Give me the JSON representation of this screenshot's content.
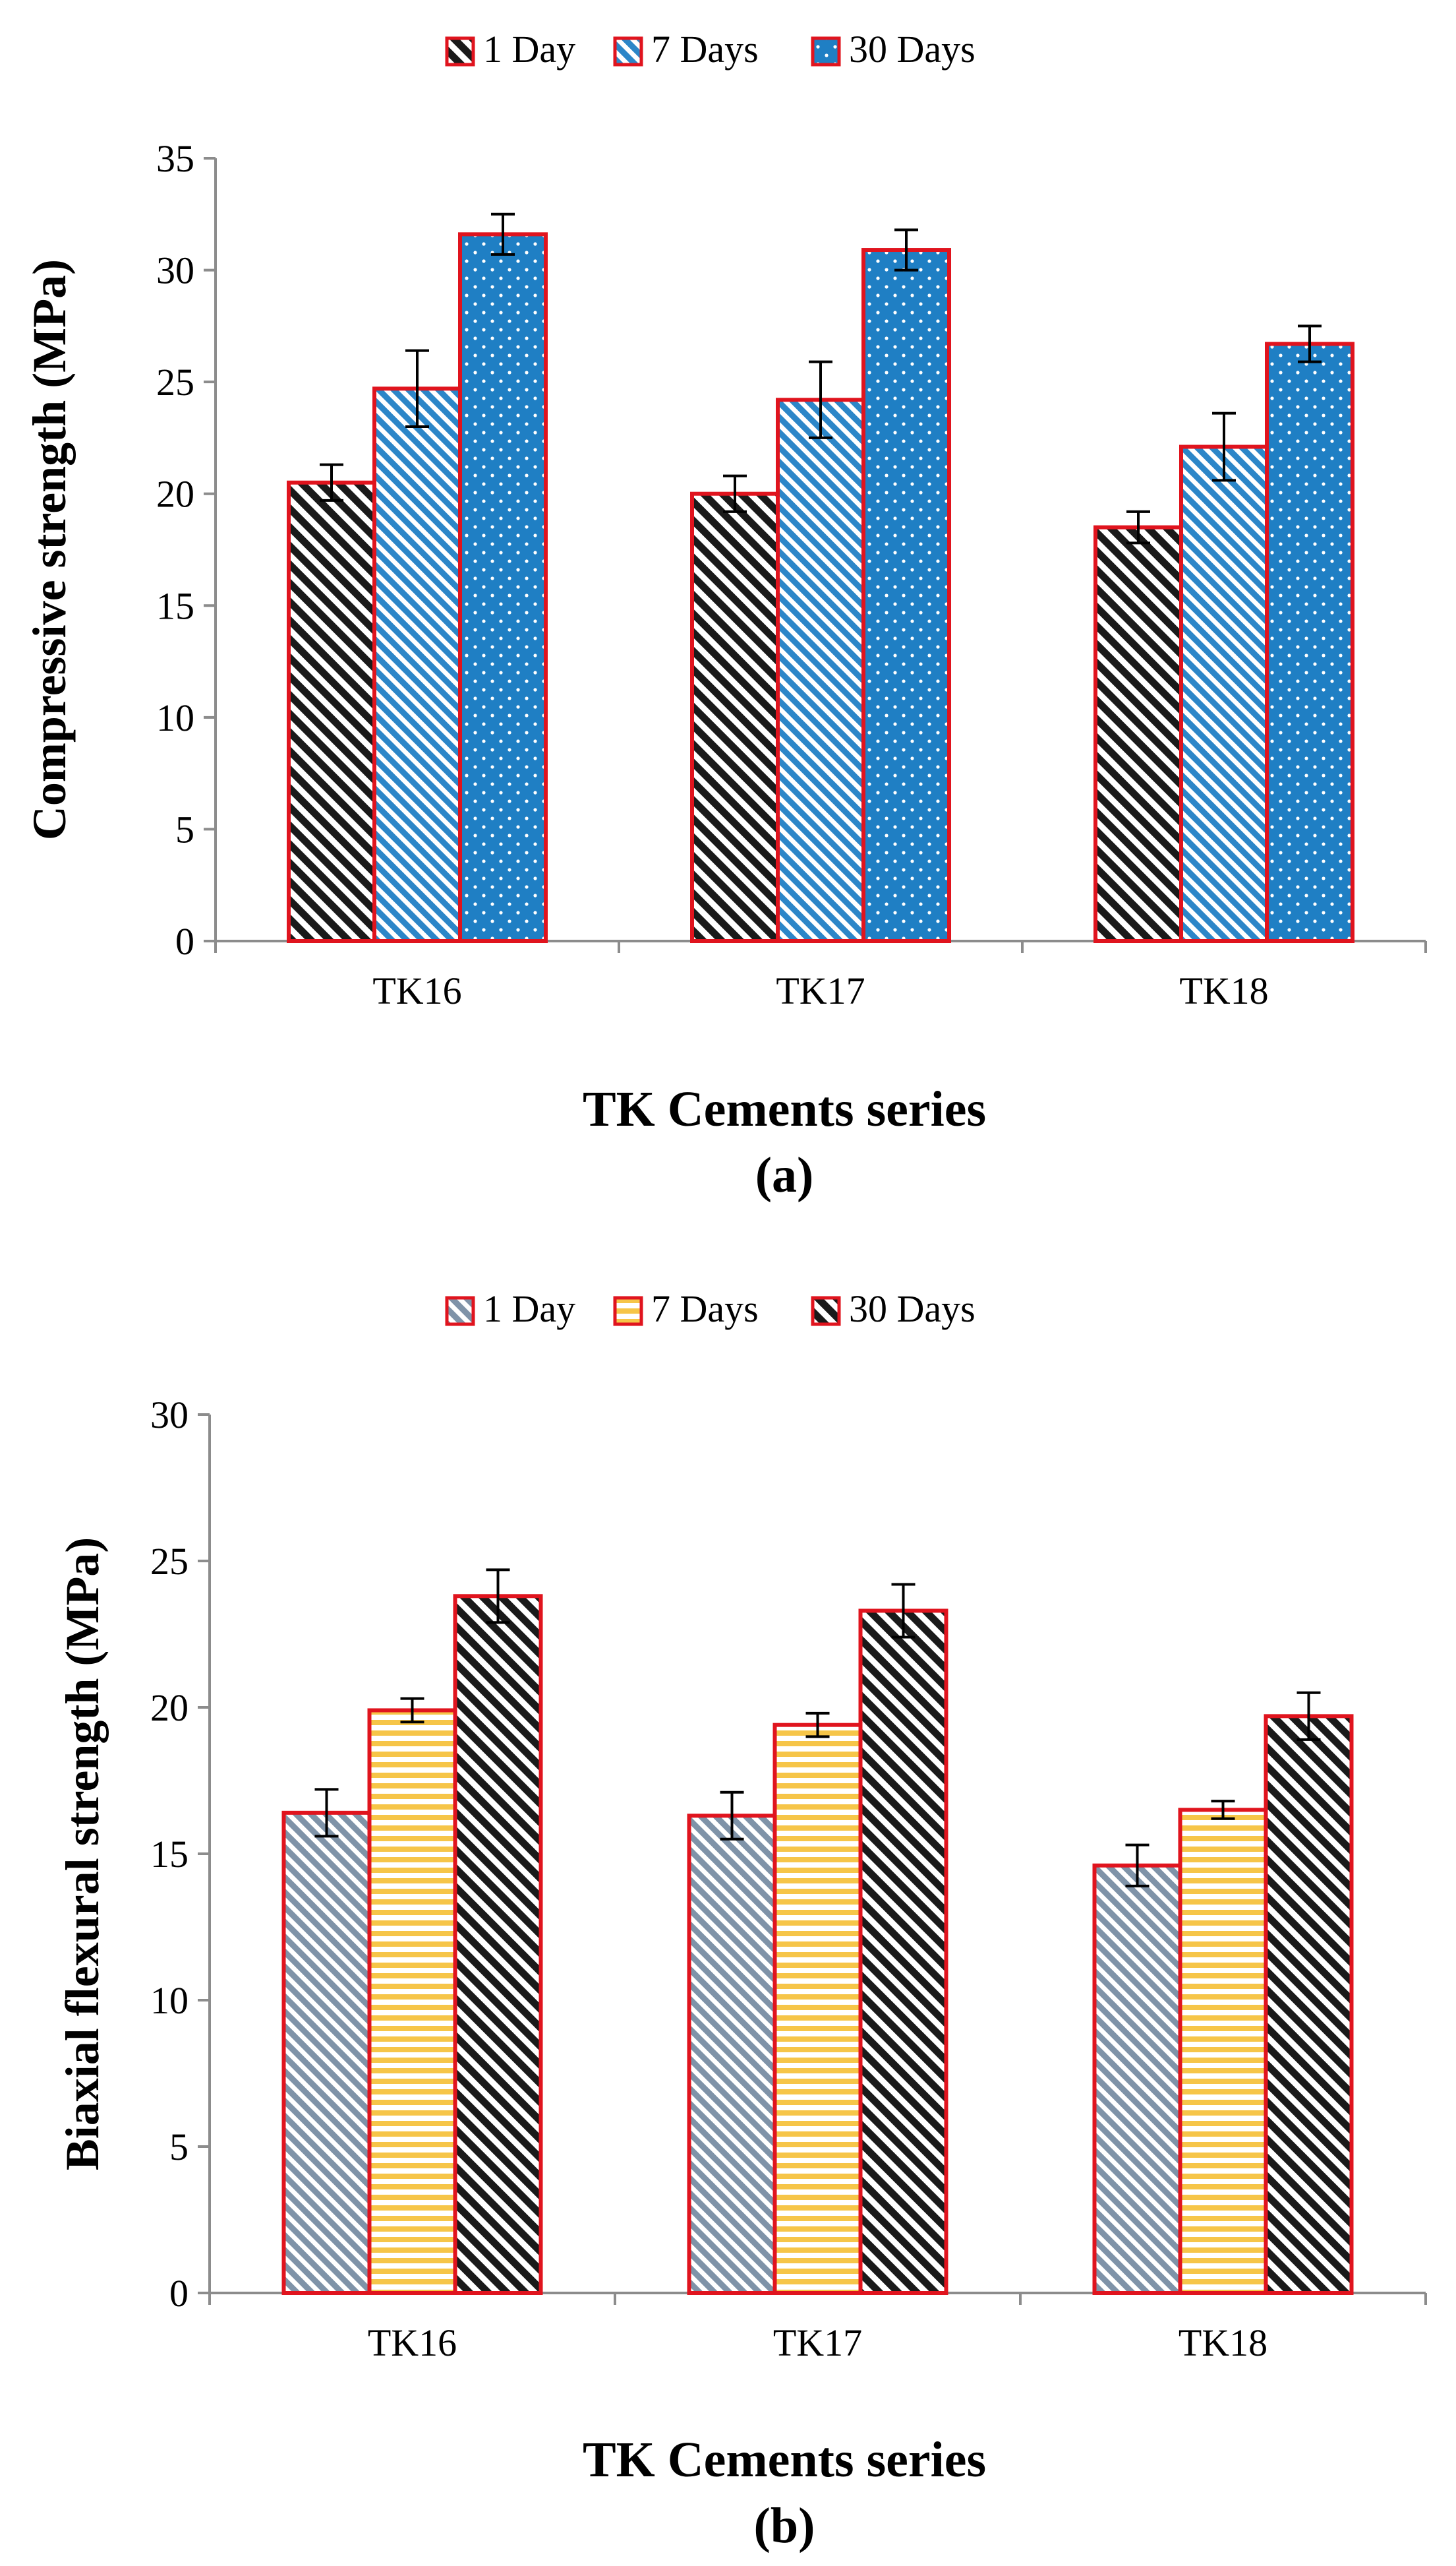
{
  "chart_data": [
    {
      "type": "bar",
      "panel_label": "(a)",
      "xlabel": "TK Cements series",
      "ylabel": "Compressive strength (MPa)",
      "ylim": [
        0,
        35
      ],
      "yticks": [
        0,
        5,
        10,
        15,
        20,
        25,
        30,
        35
      ],
      "categories": [
        "TK16",
        "TK17",
        "TK18"
      ],
      "legend_position": "top-center",
      "series": [
        {
          "name": "1 Day",
          "pattern": "diag-black",
          "values": [
            20.5,
            20.0,
            18.5
          ],
          "errors": [
            0.8,
            0.8,
            0.7
          ]
        },
        {
          "name": "7 Days",
          "pattern": "diag-blue",
          "values": [
            24.7,
            24.2,
            22.1
          ],
          "errors": [
            1.7,
            1.7,
            1.5
          ]
        },
        {
          "name": "30 Days",
          "pattern": "dots-blue",
          "values": [
            31.6,
            30.9,
            26.7
          ],
          "errors": [
            0.9,
            0.9,
            0.8
          ]
        }
      ]
    },
    {
      "type": "bar",
      "panel_label": "(b)",
      "xlabel": "TK Cements series",
      "ylabel": "Biaxial flexural strength (MPa)",
      "ylim": [
        0,
        30
      ],
      "yticks": [
        0,
        5,
        10,
        15,
        20,
        25,
        30
      ],
      "categories": [
        "TK16",
        "TK17",
        "TK18"
      ],
      "legend_position": "top-center",
      "series": [
        {
          "name": "1 Day",
          "pattern": "diag-gray",
          "values": [
            16.4,
            16.3,
            14.6
          ],
          "errors": [
            0.8,
            0.8,
            0.7
          ]
        },
        {
          "name": "7 Days",
          "pattern": "hstripe-yellow",
          "values": [
            19.9,
            19.4,
            16.5
          ],
          "errors": [
            0.4,
            0.4,
            0.3
          ]
        },
        {
          "name": "30 Days",
          "pattern": "diag-black",
          "values": [
            23.8,
            23.3,
            19.7
          ],
          "errors": [
            0.9,
            0.9,
            0.8
          ]
        }
      ]
    }
  ],
  "colors": {
    "bar_border": "#e0141e",
    "axis": "#8c8c8c",
    "error_bar": "#000000",
    "blue": "#1f7fc4",
    "blue_light": "#9ccbe9",
    "gray_blue": "#7f93a8",
    "yellow": "#f6c548"
  }
}
